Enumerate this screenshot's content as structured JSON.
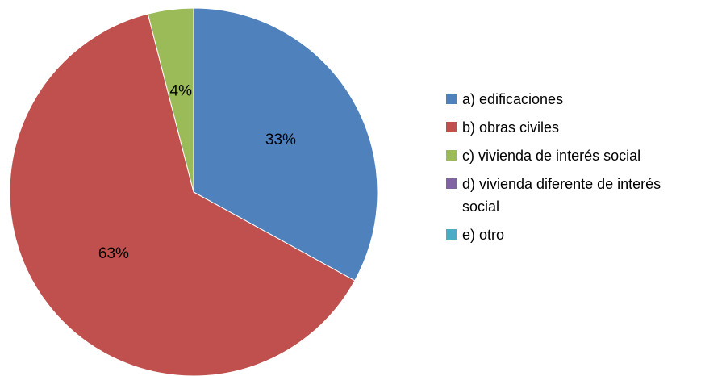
{
  "chart_data": {
    "type": "pie",
    "categories": [
      "a) edificaciones",
      "b) obras civiles",
      "c) vivienda de interés social",
      "d) vivienda diferente de interés social",
      "e) otro"
    ],
    "values": [
      33,
      63,
      4,
      0,
      0
    ],
    "value_labels": [
      "33%",
      "63%",
      "4%",
      null,
      null
    ],
    "colors": [
      "#4f81bd",
      "#c0504d",
      "#9bbb59",
      "#8064a2",
      "#4bacc6"
    ],
    "legend": "right"
  }
}
